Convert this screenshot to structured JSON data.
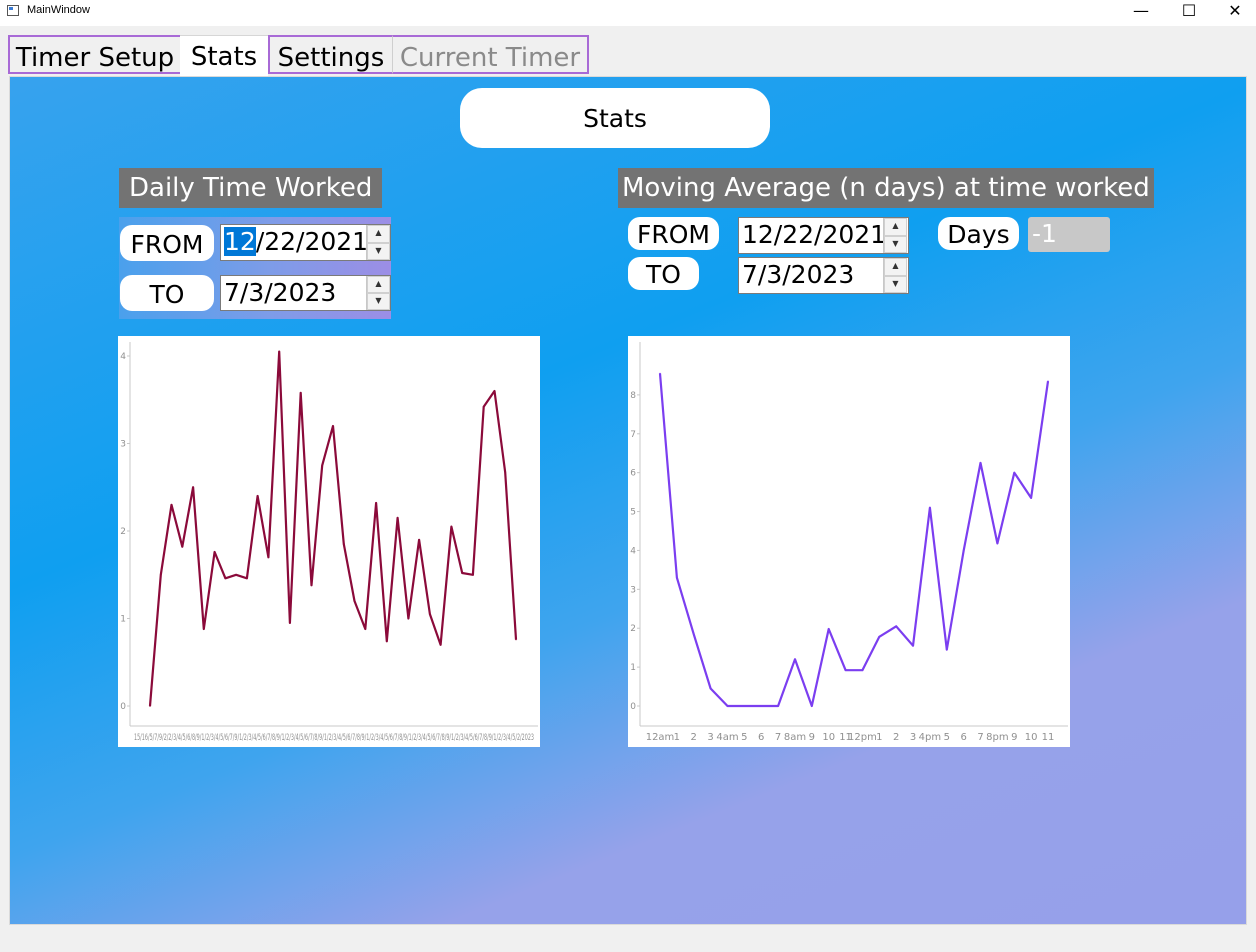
{
  "window": {
    "title": "MainWindow",
    "controls": {
      "minimize": "—",
      "maximize": "☐",
      "close": "✕"
    }
  },
  "tabs": [
    {
      "label": "Timer Setup"
    },
    {
      "label": "Stats"
    },
    {
      "label": "Settings"
    },
    {
      "label": "Current Timer"
    }
  ],
  "page": {
    "title": "Stats"
  },
  "daily": {
    "heading": "Daily Time Worked",
    "from_label": "FROM",
    "to_label": "TO",
    "from_date_sel": "12",
    "from_date_rest": "/22/2021",
    "to_date": "7/3/2023"
  },
  "moving": {
    "heading": "Moving Average (n days) at time worked",
    "from_label": "FROM",
    "to_label": "TO",
    "from_date": "12/22/2021",
    "to_date": "7/3/2023",
    "days_label": "Days",
    "days_value": "-1"
  },
  "chart_data": [
    {
      "type": "line",
      "title": "",
      "color": "#8b0a3a",
      "ylim": [
        0,
        4.2
      ],
      "yticks": [
        "0",
        "1",
        "2",
        "3",
        "4"
      ],
      "xtick_text": "15/16/5/7/9/2/2/3/4/5/6/8/9/1/2/3/4/5/6/7/9/1/2/3/4/5/6/7/8/9/1/2/3/4/5/6/7/8/9/1/2/3/4/5/6/7/8/9/1/2/3/4/5/6/7/8/9/1/2/3/4/5/6/7/8/9/1/2/3/4/5/6/7/8/9/1/2/3/4/5/2/2023",
      "values": [
        0.0,
        1.5,
        2.3,
        1.82,
        2.5,
        0.88,
        1.76,
        1.46,
        1.5,
        1.46,
        2.4,
        1.7,
        4.05,
        0.95,
        3.58,
        1.38,
        2.75,
        3.2,
        1.85,
        1.2,
        0.88,
        2.32,
        0.74,
        2.15,
        1.0,
        1.9,
        1.05,
        0.7,
        2.05,
        1.52,
        1.5,
        3.42,
        3.6,
        2.67,
        0.76
      ]
    },
    {
      "type": "line",
      "title": "",
      "color": "#7b3ef0",
      "ylim": [
        0,
        8.7
      ],
      "yticks": [
        "0",
        "1",
        "2",
        "3",
        "4",
        "5",
        "6",
        "7",
        "8"
      ],
      "categories": [
        "12am",
        "1",
        "2",
        "3",
        "4am",
        "5",
        "6",
        "7",
        "8am",
        "9",
        "10",
        "11",
        "12pm",
        "1",
        "2",
        "3",
        "4pm",
        "5",
        "6",
        "7",
        "8pm",
        "9",
        "10",
        "11"
      ],
      "xticks": [
        "12am",
        "1",
        "2",
        "3",
        "4am",
        "5",
        "6",
        "7",
        "8am",
        "9",
        "10",
        "11",
        "12pm",
        "1",
        "2",
        "3",
        "4pm",
        "5",
        "6",
        "7",
        "8pm",
        "9",
        "10",
        "11"
      ],
      "values": [
        8.55,
        3.3,
        1.85,
        0.45,
        0.0,
        0.0,
        0.0,
        0.0,
        1.2,
        0.0,
        1.98,
        0.92,
        0.92,
        1.78,
        2.05,
        1.55,
        5.1,
        1.45,
        4.0,
        6.25,
        4.18,
        6.0,
        5.35,
        8.35
      ]
    }
  ]
}
